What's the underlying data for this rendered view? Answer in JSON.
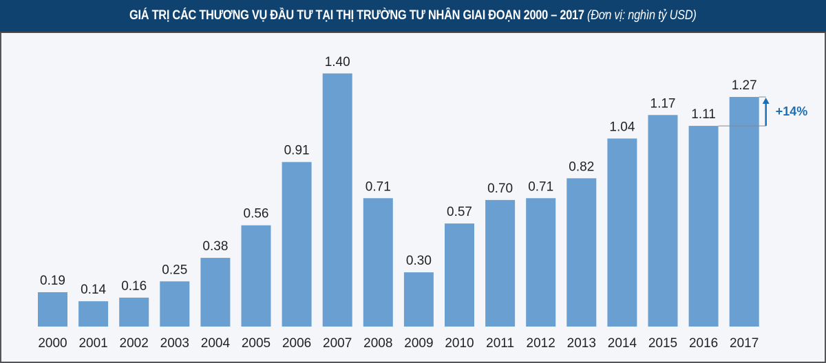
{
  "chart_data": {
    "type": "bar",
    "title": "GIÁ TRỊ CÁC THƯƠNG VỤ ĐẦU TƯ TẠI THỊ TRƯỜNG TƯ NHÂN GIAI ĐOẠN 2000 – 2017",
    "unit": "(Đơn vị: nghìn tỷ USD)",
    "xlabel": "",
    "ylabel": "",
    "ylim": [
      0,
      1.4
    ],
    "grid": false,
    "categories": [
      "2000",
      "2001",
      "2002",
      "2003",
      "2004",
      "2005",
      "2006",
      "2007",
      "2008",
      "2009",
      "2010",
      "2011",
      "2012",
      "2013",
      "2014",
      "2015",
      "2016",
      "2017"
    ],
    "values": [
      0.19,
      0.14,
      0.16,
      0.25,
      0.38,
      0.56,
      0.91,
      1.4,
      0.71,
      0.3,
      0.57,
      0.7,
      0.71,
      0.82,
      1.04,
      1.17,
      1.11,
      1.27
    ],
    "value_labels": [
      "0.19",
      "0.14",
      "0.16",
      "0.25",
      "0.38",
      "0.56",
      "0.91",
      "1.40",
      "0.71",
      "0.30",
      "0.57",
      "0.70",
      "0.71",
      "0.82",
      "1.04",
      "1.17",
      "1.11",
      "1.27"
    ],
    "annotation": {
      "text": "+14%",
      "from": "2016",
      "to": "2017"
    },
    "colors": {
      "bar": "#6a9fd2",
      "header": "#0f426f",
      "annotation": "#1d6fb4",
      "background": "#f4f6f9"
    }
  }
}
